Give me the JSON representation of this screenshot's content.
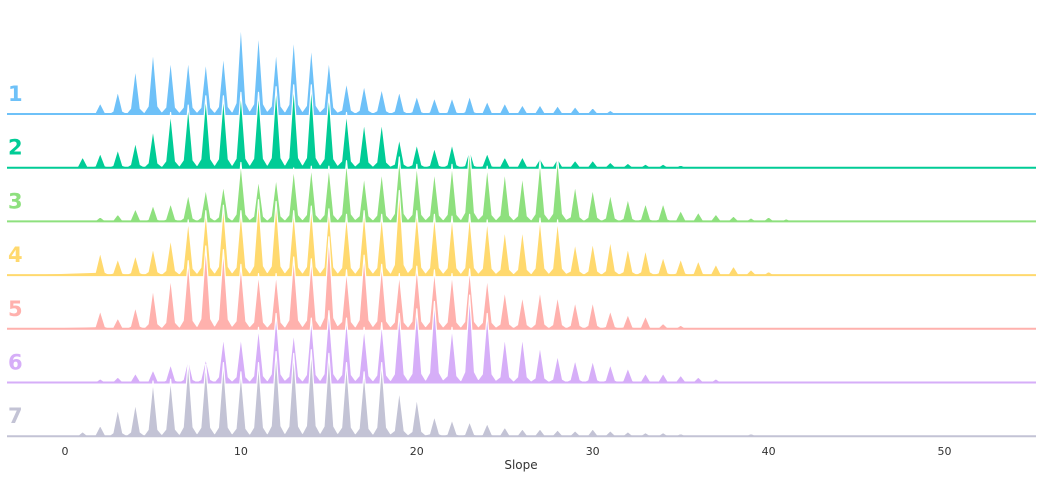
{
  "chart_data": {
    "type": "area",
    "subtype": "ridgeline",
    "xlabel": "Slope",
    "ylabel": "",
    "xlim": [
      -3.3,
      55.2
    ],
    "xticks": [
      "0",
      "10",
      "20",
      "30",
      "40",
      "50"
    ],
    "xtick_values": [
      0,
      10,
      20,
      30,
      40,
      50
    ],
    "grid": false,
    "legend": "none",
    "series": [
      {
        "name": "1",
        "color": "#6ec1f8",
        "peaks": [
          [
            2,
            0.12
          ],
          [
            3,
            0.25
          ],
          [
            4,
            0.5
          ],
          [
            5,
            0.7
          ],
          [
            6,
            0.6
          ],
          [
            7,
            0.6
          ],
          [
            8,
            0.58
          ],
          [
            9,
            0.65
          ],
          [
            10,
            1.0
          ],
          [
            11,
            0.9
          ],
          [
            12,
            0.7
          ],
          [
            13,
            0.85
          ],
          [
            14,
            0.75
          ],
          [
            15,
            0.6
          ],
          [
            16,
            0.35
          ],
          [
            17,
            0.32
          ],
          [
            18,
            0.28
          ],
          [
            19,
            0.25
          ],
          [
            20,
            0.2
          ],
          [
            21,
            0.18
          ],
          [
            22,
            0.18
          ],
          [
            23,
            0.2
          ],
          [
            24,
            0.14
          ],
          [
            25,
            0.12
          ],
          [
            26,
            0.1
          ],
          [
            27,
            0.1
          ],
          [
            28,
            0.09
          ],
          [
            29,
            0.08
          ],
          [
            30,
            0.07
          ],
          [
            31,
            0.04
          ]
        ]
      },
      {
        "name": "2",
        "color": "#00cc96",
        "peaks": [
          [
            1,
            0.12
          ],
          [
            2,
            0.16
          ],
          [
            3,
            0.2
          ],
          [
            4,
            0.28
          ],
          [
            5,
            0.42
          ],
          [
            6,
            0.6
          ],
          [
            7,
            0.68
          ],
          [
            8,
            0.78
          ],
          [
            9,
            0.78
          ],
          [
            10,
            0.82
          ],
          [
            11,
            0.82
          ],
          [
            12,
            0.88
          ],
          [
            13,
            0.9
          ],
          [
            14,
            0.9
          ],
          [
            15,
            0.8
          ],
          [
            16,
            0.6
          ],
          [
            17,
            0.5
          ],
          [
            18,
            0.5
          ],
          [
            19,
            0.32
          ],
          [
            20,
            0.26
          ],
          [
            21,
            0.22
          ],
          [
            22,
            0.26
          ],
          [
            23,
            0.2
          ],
          [
            24,
            0.16
          ],
          [
            25,
            0.12
          ],
          [
            26,
            0.12
          ],
          [
            27,
            0.1
          ],
          [
            28,
            0.1
          ],
          [
            29,
            0.08
          ],
          [
            30,
            0.08
          ],
          [
            31,
            0.06
          ],
          [
            32,
            0.05
          ],
          [
            33,
            0.04
          ],
          [
            34,
            0.04
          ],
          [
            35,
            0.03
          ]
        ]
      },
      {
        "name": "3",
        "color": "#8ee07e",
        "peaks": [
          [
            2,
            0.05
          ],
          [
            3,
            0.08
          ],
          [
            4,
            0.14
          ],
          [
            5,
            0.18
          ],
          [
            6,
            0.2
          ],
          [
            7,
            0.3
          ],
          [
            8,
            0.36
          ],
          [
            9,
            0.4
          ],
          [
            10,
            0.64
          ],
          [
            11,
            0.46
          ],
          [
            12,
            0.48
          ],
          [
            13,
            0.58
          ],
          [
            14,
            0.6
          ],
          [
            15,
            0.6
          ],
          [
            16,
            0.66
          ],
          [
            17,
            0.5
          ],
          [
            18,
            0.55
          ],
          [
            19,
            0.7
          ],
          [
            20,
            0.62
          ],
          [
            21,
            0.55
          ],
          [
            22,
            0.62
          ],
          [
            23,
            0.8
          ],
          [
            24,
            0.6
          ],
          [
            25,
            0.55
          ],
          [
            26,
            0.5
          ],
          [
            27,
            0.66
          ],
          [
            28,
            0.7
          ],
          [
            29,
            0.4
          ],
          [
            30,
            0.36
          ],
          [
            31,
            0.3
          ],
          [
            32,
            0.25
          ],
          [
            33,
            0.2
          ],
          [
            34,
            0.2
          ],
          [
            35,
            0.12
          ],
          [
            36,
            0.1
          ],
          [
            37,
            0.08
          ],
          [
            38,
            0.06
          ],
          [
            39,
            0.04
          ],
          [
            40,
            0.05
          ],
          [
            41,
            0.03
          ]
        ]
      },
      {
        "name": "4",
        "color": "#ffd96e",
        "peaks": [
          [
            2,
            0.25
          ],
          [
            3,
            0.18
          ],
          [
            4,
            0.22
          ],
          [
            5,
            0.3
          ],
          [
            6,
            0.4
          ],
          [
            7,
            0.6
          ],
          [
            8,
            0.7
          ],
          [
            9,
            0.76
          ],
          [
            10,
            0.7
          ],
          [
            11,
            0.82
          ],
          [
            12,
            0.8
          ],
          [
            13,
            0.7
          ],
          [
            14,
            0.75
          ],
          [
            15,
            0.72
          ],
          [
            16,
            0.66
          ],
          [
            17,
            0.7
          ],
          [
            18,
            0.66
          ],
          [
            19,
            0.92
          ],
          [
            20,
            0.7
          ],
          [
            21,
            0.66
          ],
          [
            22,
            0.64
          ],
          [
            23,
            0.66
          ],
          [
            24,
            0.6
          ],
          [
            25,
            0.5
          ],
          [
            26,
            0.5
          ],
          [
            27,
            0.62
          ],
          [
            28,
            0.6
          ],
          [
            29,
            0.35
          ],
          [
            30,
            0.36
          ],
          [
            31,
            0.38
          ],
          [
            32,
            0.3
          ],
          [
            33,
            0.28
          ],
          [
            34,
            0.2
          ],
          [
            35,
            0.18
          ],
          [
            36,
            0.16
          ],
          [
            37,
            0.12
          ],
          [
            38,
            0.1
          ],
          [
            39,
            0.06
          ],
          [
            40,
            0.04
          ]
        ]
      },
      {
        "name": "5",
        "color": "#ffb1ad",
        "peaks": [
          [
            2,
            0.2
          ],
          [
            3,
            0.12
          ],
          [
            4,
            0.24
          ],
          [
            5,
            0.44
          ],
          [
            6,
            0.56
          ],
          [
            7,
            0.74
          ],
          [
            8,
            0.9
          ],
          [
            9,
            0.86
          ],
          [
            10,
            0.7
          ],
          [
            11,
            0.6
          ],
          [
            12,
            0.6
          ],
          [
            13,
            0.78
          ],
          [
            14,
            0.76
          ],
          [
            15,
            1.0
          ],
          [
            16,
            0.64
          ],
          [
            17,
            0.8
          ],
          [
            18,
            0.7
          ],
          [
            19,
            0.6
          ],
          [
            20,
            0.68
          ],
          [
            21,
            0.64
          ],
          [
            22,
            0.6
          ],
          [
            23,
            0.65
          ],
          [
            24,
            0.56
          ],
          [
            25,
            0.42
          ],
          [
            26,
            0.36
          ],
          [
            27,
            0.42
          ],
          [
            28,
            0.36
          ],
          [
            29,
            0.3
          ],
          [
            30,
            0.3
          ],
          [
            31,
            0.2
          ],
          [
            32,
            0.16
          ],
          [
            33,
            0.14
          ],
          [
            34,
            0.06
          ],
          [
            35,
            0.04
          ]
        ]
      },
      {
        "name": "6",
        "color": "#d6aef8",
        "peaks": [
          [
            2,
            0.04
          ],
          [
            3,
            0.06
          ],
          [
            4,
            0.1
          ],
          [
            5,
            0.14
          ],
          [
            6,
            0.2
          ],
          [
            7,
            0.26
          ],
          [
            8,
            0.26
          ],
          [
            9,
            0.5
          ],
          [
            10,
            0.5
          ],
          [
            11,
            0.6
          ],
          [
            12,
            0.75
          ],
          [
            13,
            0.55
          ],
          [
            14,
            0.7
          ],
          [
            15,
            0.78
          ],
          [
            16,
            0.7
          ],
          [
            17,
            0.6
          ],
          [
            18,
            0.65
          ],
          [
            19,
            0.75
          ],
          [
            20,
            0.8
          ],
          [
            21,
            0.88
          ],
          [
            22,
            0.6
          ],
          [
            23,
            0.95
          ],
          [
            24,
            0.75
          ],
          [
            25,
            0.5
          ],
          [
            26,
            0.5
          ],
          [
            27,
            0.4
          ],
          [
            28,
            0.3
          ],
          [
            29,
            0.25
          ],
          [
            30,
            0.24
          ],
          [
            31,
            0.2
          ],
          [
            32,
            0.16
          ],
          [
            33,
            0.1
          ],
          [
            34,
            0.1
          ],
          [
            35,
            0.08
          ],
          [
            36,
            0.06
          ],
          [
            37,
            0.04
          ]
        ]
      },
      {
        "name": "7",
        "color": "#c3c3d5",
        "peaks": [
          [
            1,
            0.05
          ],
          [
            2,
            0.12
          ],
          [
            3,
            0.3
          ],
          [
            4,
            0.36
          ],
          [
            5,
            0.6
          ],
          [
            6,
            0.62
          ],
          [
            7,
            0.82
          ],
          [
            8,
            0.78
          ],
          [
            9,
            0.8
          ],
          [
            10,
            0.7
          ],
          [
            11,
            0.8
          ],
          [
            12,
            0.92
          ],
          [
            13,
            0.9
          ],
          [
            14,
            0.94
          ],
          [
            15,
            0.9
          ],
          [
            16,
            0.8
          ],
          [
            17,
            0.7
          ],
          [
            18,
            0.8
          ],
          [
            19,
            0.5
          ],
          [
            20,
            0.42
          ],
          [
            21,
            0.22
          ],
          [
            22,
            0.18
          ],
          [
            23,
            0.16
          ],
          [
            24,
            0.14
          ],
          [
            25,
            0.1
          ],
          [
            26,
            0.08
          ],
          [
            27,
            0.08
          ],
          [
            28,
            0.07
          ],
          [
            29,
            0.06
          ],
          [
            30,
            0.08
          ],
          [
            31,
            0.06
          ],
          [
            32,
            0.05
          ],
          [
            33,
            0.04
          ],
          [
            34,
            0.04
          ],
          [
            35,
            0.03
          ],
          [
            39,
            0.03
          ]
        ]
      }
    ]
  }
}
